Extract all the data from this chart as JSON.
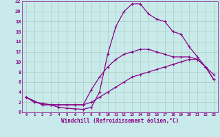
{
  "xlabel": "Windchill (Refroidissement éolien,°C)",
  "xlim": [
    -0.5,
    23.5
  ],
  "ylim": [
    0,
    22
  ],
  "xticks": [
    0,
    1,
    2,
    3,
    4,
    5,
    6,
    7,
    8,
    9,
    10,
    11,
    12,
    13,
    14,
    15,
    16,
    17,
    18,
    19,
    20,
    21,
    22,
    23
  ],
  "yticks": [
    0,
    2,
    4,
    6,
    8,
    10,
    12,
    14,
    16,
    18,
    20,
    22
  ],
  "bg_color": "#c8eaea",
  "line_color": "#880088",
  "line_width": 0.9,
  "marker": "+",
  "marker_size": 3.5,
  "grid_color": "#aaccbb",
  "curve1_x": [
    0,
    1,
    2,
    3,
    4,
    5,
    6,
    7,
    8,
    9,
    10,
    11,
    12,
    13,
    14,
    15,
    16,
    17,
    18,
    19,
    20,
    21,
    22,
    23
  ],
  "curve1_y": [
    3,
    2,
    1.8,
    1.5,
    1.0,
    0.8,
    0.7,
    0.6,
    1.0,
    4.0,
    11.5,
    17.0,
    20.0,
    21.5,
    21.5,
    19.5,
    18.5,
    18.0,
    16.0,
    15.5,
    13.0,
    11.0,
    9.0,
    7.5
  ],
  "curve2_x": [
    0,
    2,
    3,
    4,
    5,
    6,
    7,
    8,
    9,
    10,
    11,
    12,
    13,
    14,
    15,
    16,
    17,
    18,
    19,
    20,
    21,
    22,
    23
  ],
  "curve2_y": [
    3,
    1.5,
    1.5,
    1.5,
    1.5,
    1.5,
    1.5,
    4.5,
    7.0,
    9.0,
    10.5,
    11.5,
    12.0,
    12.5,
    12.5,
    12.0,
    11.5,
    11.0,
    11.0,
    11.0,
    10.5,
    9.0,
    6.5
  ],
  "curve3_x": [
    0,
    2,
    3,
    4,
    5,
    6,
    7,
    8,
    9,
    10,
    11,
    12,
    13,
    14,
    15,
    16,
    17,
    18,
    19,
    20,
    21,
    22,
    23
  ],
  "curve3_y": [
    3,
    1.5,
    1.5,
    1.5,
    1.5,
    1.5,
    1.5,
    2.0,
    3.0,
    4.0,
    5.0,
    6.0,
    7.0,
    7.5,
    8.0,
    8.5,
    9.0,
    9.5,
    10.0,
    10.5,
    10.5,
    9.0,
    6.5
  ]
}
